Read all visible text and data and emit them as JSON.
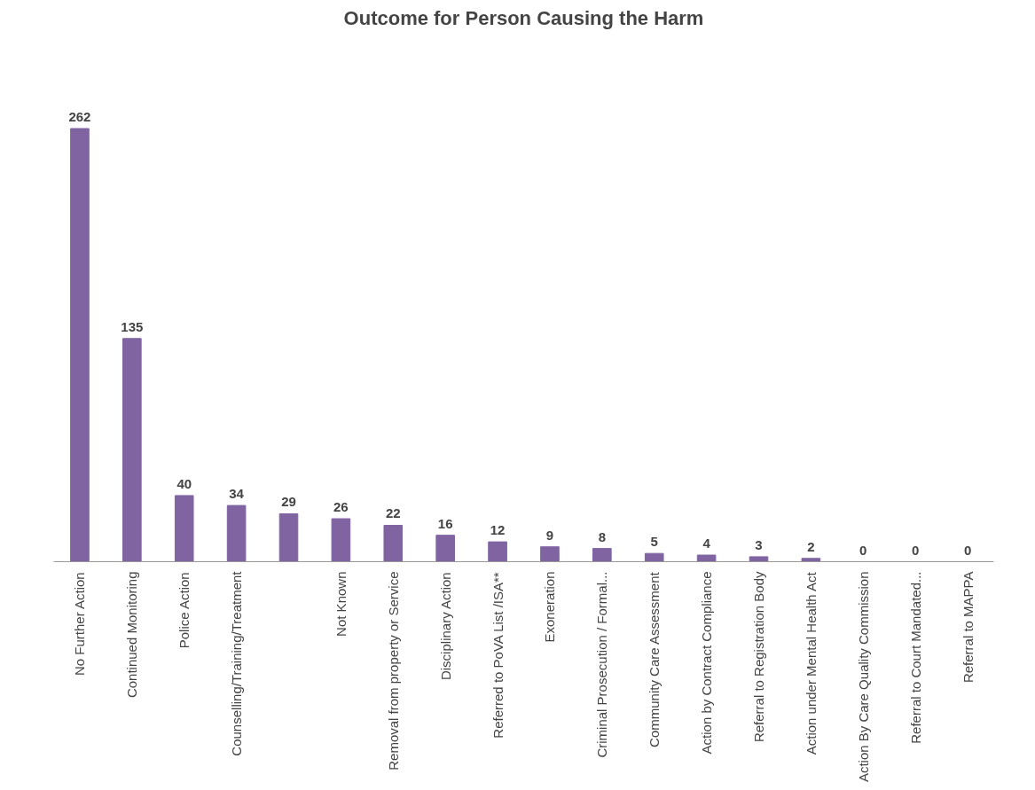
{
  "chart_data": {
    "type": "bar",
    "title": "Outcome for Person Causing the Harm",
    "categories": [
      "No Further Action",
      "Continued Monitoring",
      "Police Action",
      "Counselling/Training/Treatment",
      null,
      "Not Known",
      "Removal from property or Service",
      "Disciplinary Action",
      "Referred to PoVA List /ISA**",
      "Exoneration",
      "Criminal Prosecution / Formal...",
      "Community Care Assessment",
      "Action by Contract Compliance",
      "Referral to Registration Body",
      "Action under Mental Health Act",
      "Action By Care Quality Commission",
      "Referral to Court Mandated...",
      "Referral to MAPPA"
    ],
    "values": [
      262,
      135,
      40,
      34,
      29,
      26,
      22,
      16,
      12,
      9,
      8,
      5,
      4,
      3,
      2,
      0,
      0,
      0
    ],
    "color": "#8064a2",
    "data_labels": true,
    "grid": false
  }
}
